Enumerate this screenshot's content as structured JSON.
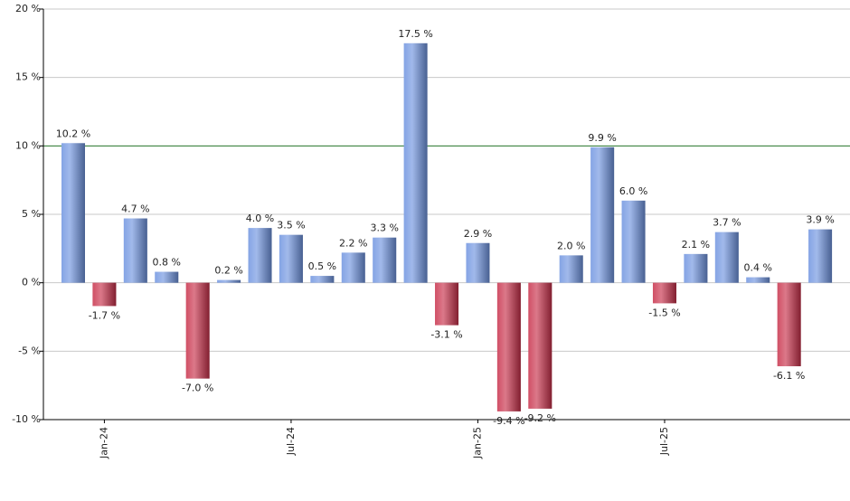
{
  "chart_data": {
    "type": "bar",
    "categories": [
      null,
      "Jan-24",
      null,
      null,
      null,
      null,
      null,
      "Jul-24",
      null,
      null,
      null,
      null,
      null,
      "Jan-25",
      null,
      null,
      null,
      null,
      null,
      "Jul-25",
      null,
      null,
      null,
      null,
      null
    ],
    "values": [
      10.2,
      -1.7,
      4.7,
      0.8,
      -7.0,
      0.2,
      4.0,
      3.5,
      0.5,
      2.2,
      3.3,
      17.5,
      -3.1,
      2.9,
      -9.4,
      -9.2,
      2.0,
      9.9,
      6.0,
      -1.5,
      2.1,
      3.7,
      0.4,
      -6.1,
      3.9
    ],
    "value_labels": [
      "10.2 %",
      "-1.7 %",
      "4.7 %",
      "0.8 %",
      "-7.0 %",
      "0.2 %",
      "4.0 %",
      "3.5 %",
      "0.5 %",
      "2.2 %",
      "3.3 %",
      "17.5 %",
      "-3.1 %",
      "2.9 %",
      "-9.4 %",
      "-9.2 %",
      "2.0 %",
      "9.9 %",
      "6.0 %",
      "-1.5 %",
      "2.1 %",
      "3.7 %",
      "0.4 %",
      "-6.1 %",
      "3.9 %"
    ],
    "color": "#6f94e0",
    "negative_color": "#c8304a",
    "ylim": [
      -10,
      20
    ],
    "yticks": [
      {
        "value": -10,
        "label": "-10 %"
      },
      {
        "value": -5,
        "label": "-5 %"
      },
      {
        "value": 0,
        "label": "0 %"
      },
      {
        "value": 5,
        "label": "5 %"
      },
      {
        "value": 10,
        "label": "10 %"
      },
      {
        "value": 15,
        "label": "15 %"
      },
      {
        "value": 20,
        "label": "20 %"
      }
    ],
    "grid": true,
    "reference_line": {
      "value": 10,
      "color": "#2e7d32"
    }
  }
}
